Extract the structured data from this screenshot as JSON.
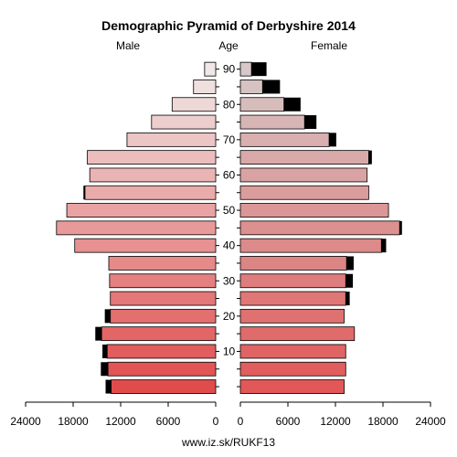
{
  "chart_data": {
    "type": "bar",
    "title": "Demographic Pyramid of Derbyshire 2014",
    "left_label": "Male",
    "center_label": "Age",
    "right_label": "Female",
    "source": "www.iz.sk/RUKF13",
    "age_ticks": [
      "10",
      "20",
      "30",
      "40",
      "50",
      "60",
      "70",
      "80",
      "90"
    ],
    "value_ticks": [
      "24000",
      "18000",
      "12000",
      "6000",
      "0",
      "0",
      "6000",
      "12000",
      "18000",
      "24000"
    ],
    "xlim": [
      0,
      24000
    ],
    "age_groups": [
      "0-4",
      "5-9",
      "10-14",
      "15-19",
      "20-24",
      "25-29",
      "30-34",
      "35-39",
      "40-44",
      "45-49",
      "50-54",
      "55-59",
      "60-64",
      "65-69",
      "70-74",
      "75-79",
      "80-84",
      "85-89",
      "90+"
    ],
    "series": [
      {
        "name": "Male",
        "values": [
          13200,
          13600,
          13700,
          14400,
          13300,
          13300,
          13400,
          13500,
          17800,
          20100,
          18800,
          16500,
          15900,
          16200,
          11200,
          8100,
          5500,
          2800,
          1400
        ],
        "excess": [
          700,
          900,
          600,
          800,
          700,
          0,
          0,
          0,
          0,
          0,
          0,
          200,
          0,
          0,
          0,
          0,
          0,
          0,
          0
        ]
      },
      {
        "name": "Female",
        "values": [
          13100,
          13300,
          13300,
          14400,
          13100,
          13300,
          13300,
          13400,
          17800,
          20100,
          18700,
          16200,
          16000,
          16200,
          11200,
          8100,
          5500,
          2800,
          1400
        ],
        "excess": [
          0,
          0,
          0,
          0,
          0,
          500,
          900,
          900,
          600,
          300,
          0,
          0,
          0,
          400,
          900,
          1500,
          2100,
          2200,
          1900
        ]
      }
    ]
  }
}
